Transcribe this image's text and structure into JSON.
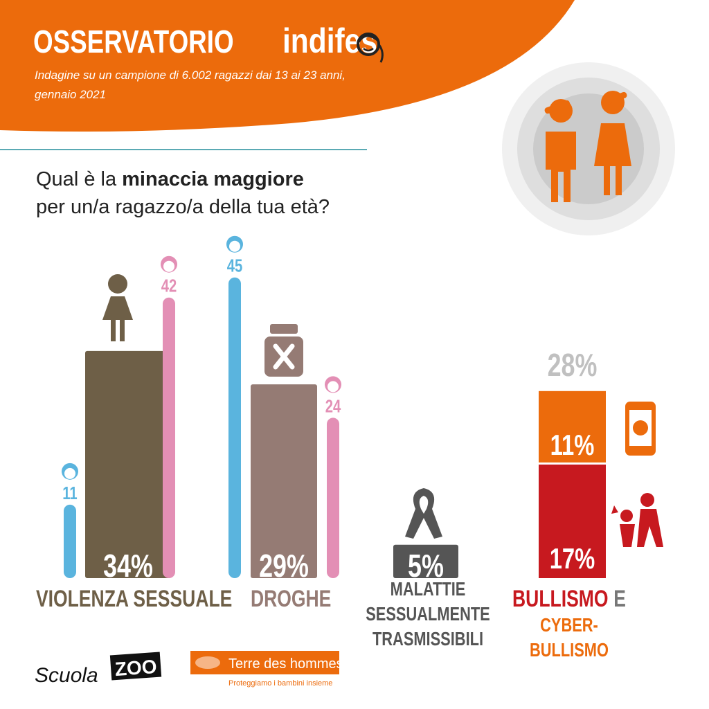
{
  "header": {
    "title": "OSSERVATORIO",
    "brand": "indifes",
    "subtitle_lines": [
      "Indagine su un campione di 6.002 ragazzi dai 13 ai 23 anni,",
      "gennaio 2021"
    ]
  },
  "question": {
    "line1": [
      "Qual è la ",
      "minaccia maggiore"
    ],
    "line2": "per un/a ragazzo/a della tua età?"
  },
  "chart_data": {
    "type": "bar",
    "categories": [
      [
        [
          {
            "text": "VIOLENZA SESSUALE",
            "color": "#6e5f47"
          }
        ]
      ],
      [
        [
          {
            "text": "DROGHE",
            "color": "#957b74"
          }
        ]
      ],
      [
        [
          {
            "text": "MALATTIE",
            "color": "#555555"
          }
        ],
        [
          {
            "text": "SESSUALMENTE",
            "color": "#555555"
          }
        ],
        [
          {
            "text": "TRASMISSIBILI",
            "color": "#555555"
          }
        ]
      ],
      [
        [
          {
            "text": "BULLISMO",
            "color": "#c7191f"
          },
          {
            "text": "E",
            "color": "#777777"
          }
        ],
        [
          {
            "text": "CYBER-",
            "color": "#ec6b0c"
          }
        ],
        [
          {
            "text": "BULLISMO",
            "color": "#ec6b0c"
          }
        ]
      ]
    ],
    "values": [
      34,
      29,
      5,
      28
    ],
    "value_labels": [
      "34%",
      "29%",
      "5%",
      "28%"
    ],
    "colors": [
      "#6e5f47",
      "#957b74",
      "#555555",
      "#c0c0c0"
    ],
    "boys": {
      "color": "#5ab4de",
      "values": [
        11,
        45,
        null,
        null
      ]
    },
    "girls": {
      "color": "#e38fb5",
      "values": [
        42,
        24,
        null,
        null
      ]
    },
    "stack": {
      "values": [
        17,
        11
      ],
      "value_labels": [
        "17%",
        "11%"
      ],
      "colors": [
        "#c7191f",
        "#ec6b0c"
      ]
    }
  },
  "footer": {
    "scuola": "Scuola",
    "zoo": "ZOO",
    "tdh": "Terre des hommes",
    "tdh_tagline": "Proteggiamo i bambini insieme"
  }
}
